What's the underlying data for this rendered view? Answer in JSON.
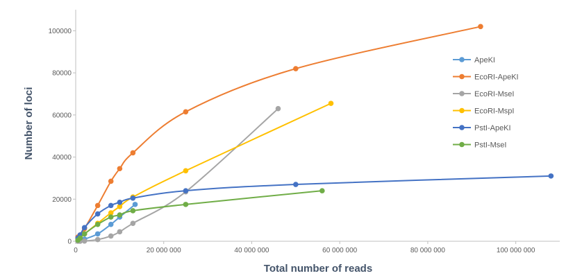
{
  "chart_data": {
    "type": "line",
    "xlabel": "Total number of reads",
    "ylabel": "Number of loci",
    "xlim": [
      0,
      110000000
    ],
    "ylim": [
      0,
      110000
    ],
    "x_ticks": [
      0,
      20000000,
      40000000,
      60000000,
      80000000,
      100000000
    ],
    "x_tick_labels": [
      "0",
      "20 000 000",
      "40 000 000",
      "60 000 000",
      "80 000 000",
      "100 000 000"
    ],
    "y_ticks": [
      0,
      20000,
      40000,
      60000,
      80000,
      100000
    ],
    "y_tick_labels": [
      "0",
      "20000",
      "40000",
      "60000",
      "80000",
      "100000"
    ],
    "grid": false,
    "legend_position": "right",
    "series": [
      {
        "name": "ApeKI",
        "color": "#5b9bd5",
        "x": [
          500000,
          1000000,
          2000000,
          5000000,
          8000000,
          10000000,
          13500000
        ],
        "y": [
          100,
          500,
          1000,
          3500,
          8000,
          11500,
          17500
        ]
      },
      {
        "name": "EcoRI-ApeKI",
        "color": "#ed7d31",
        "x": [
          500000,
          1000000,
          2000000,
          5000000,
          8000000,
          10000000,
          13000000,
          25000000,
          50000000,
          92000000
        ],
        "y": [
          2000,
          3000,
          6000,
          17000,
          28500,
          34500,
          42000,
          61500,
          82000,
          102000
        ]
      },
      {
        "name": "EcoRI-MseI",
        "color": "#a5a5a5",
        "x": [
          500000,
          1000000,
          2000000,
          5000000,
          8000000,
          10000000,
          13000000,
          25000000,
          46000000
        ],
        "y": [
          0,
          0,
          100,
          800,
          2500,
          4500,
          8500,
          23500,
          63000
        ]
      },
      {
        "name": "EcoRI-MspI",
        "color": "#ffc000",
        "x": [
          500000,
          1000000,
          2000000,
          5000000,
          8000000,
          10000000,
          13000000,
          25000000,
          58000000
        ],
        "y": [
          1000,
          2000,
          3500,
          8500,
          13500,
          16500,
          21000,
          33500,
          65500
        ]
      },
      {
        "name": "PstI-ApeKI",
        "color": "#4472c4",
        "x": [
          500000,
          1000000,
          2000000,
          5000000,
          8000000,
          10000000,
          13000000,
          25000000,
          50000000,
          108000000
        ],
        "y": [
          1500,
          3000,
          6500,
          13000,
          17000,
          18500,
          20500,
          24000,
          27000,
          31000
        ]
      },
      {
        "name": "PstI-MseI",
        "color": "#70ad47",
        "x": [
          500000,
          1000000,
          2000000,
          5000000,
          8000000,
          10000000,
          13000000,
          25000000,
          56000000
        ],
        "y": [
          500,
          1500,
          3500,
          8000,
          11500,
          12500,
          14500,
          17500,
          24000
        ]
      }
    ]
  }
}
